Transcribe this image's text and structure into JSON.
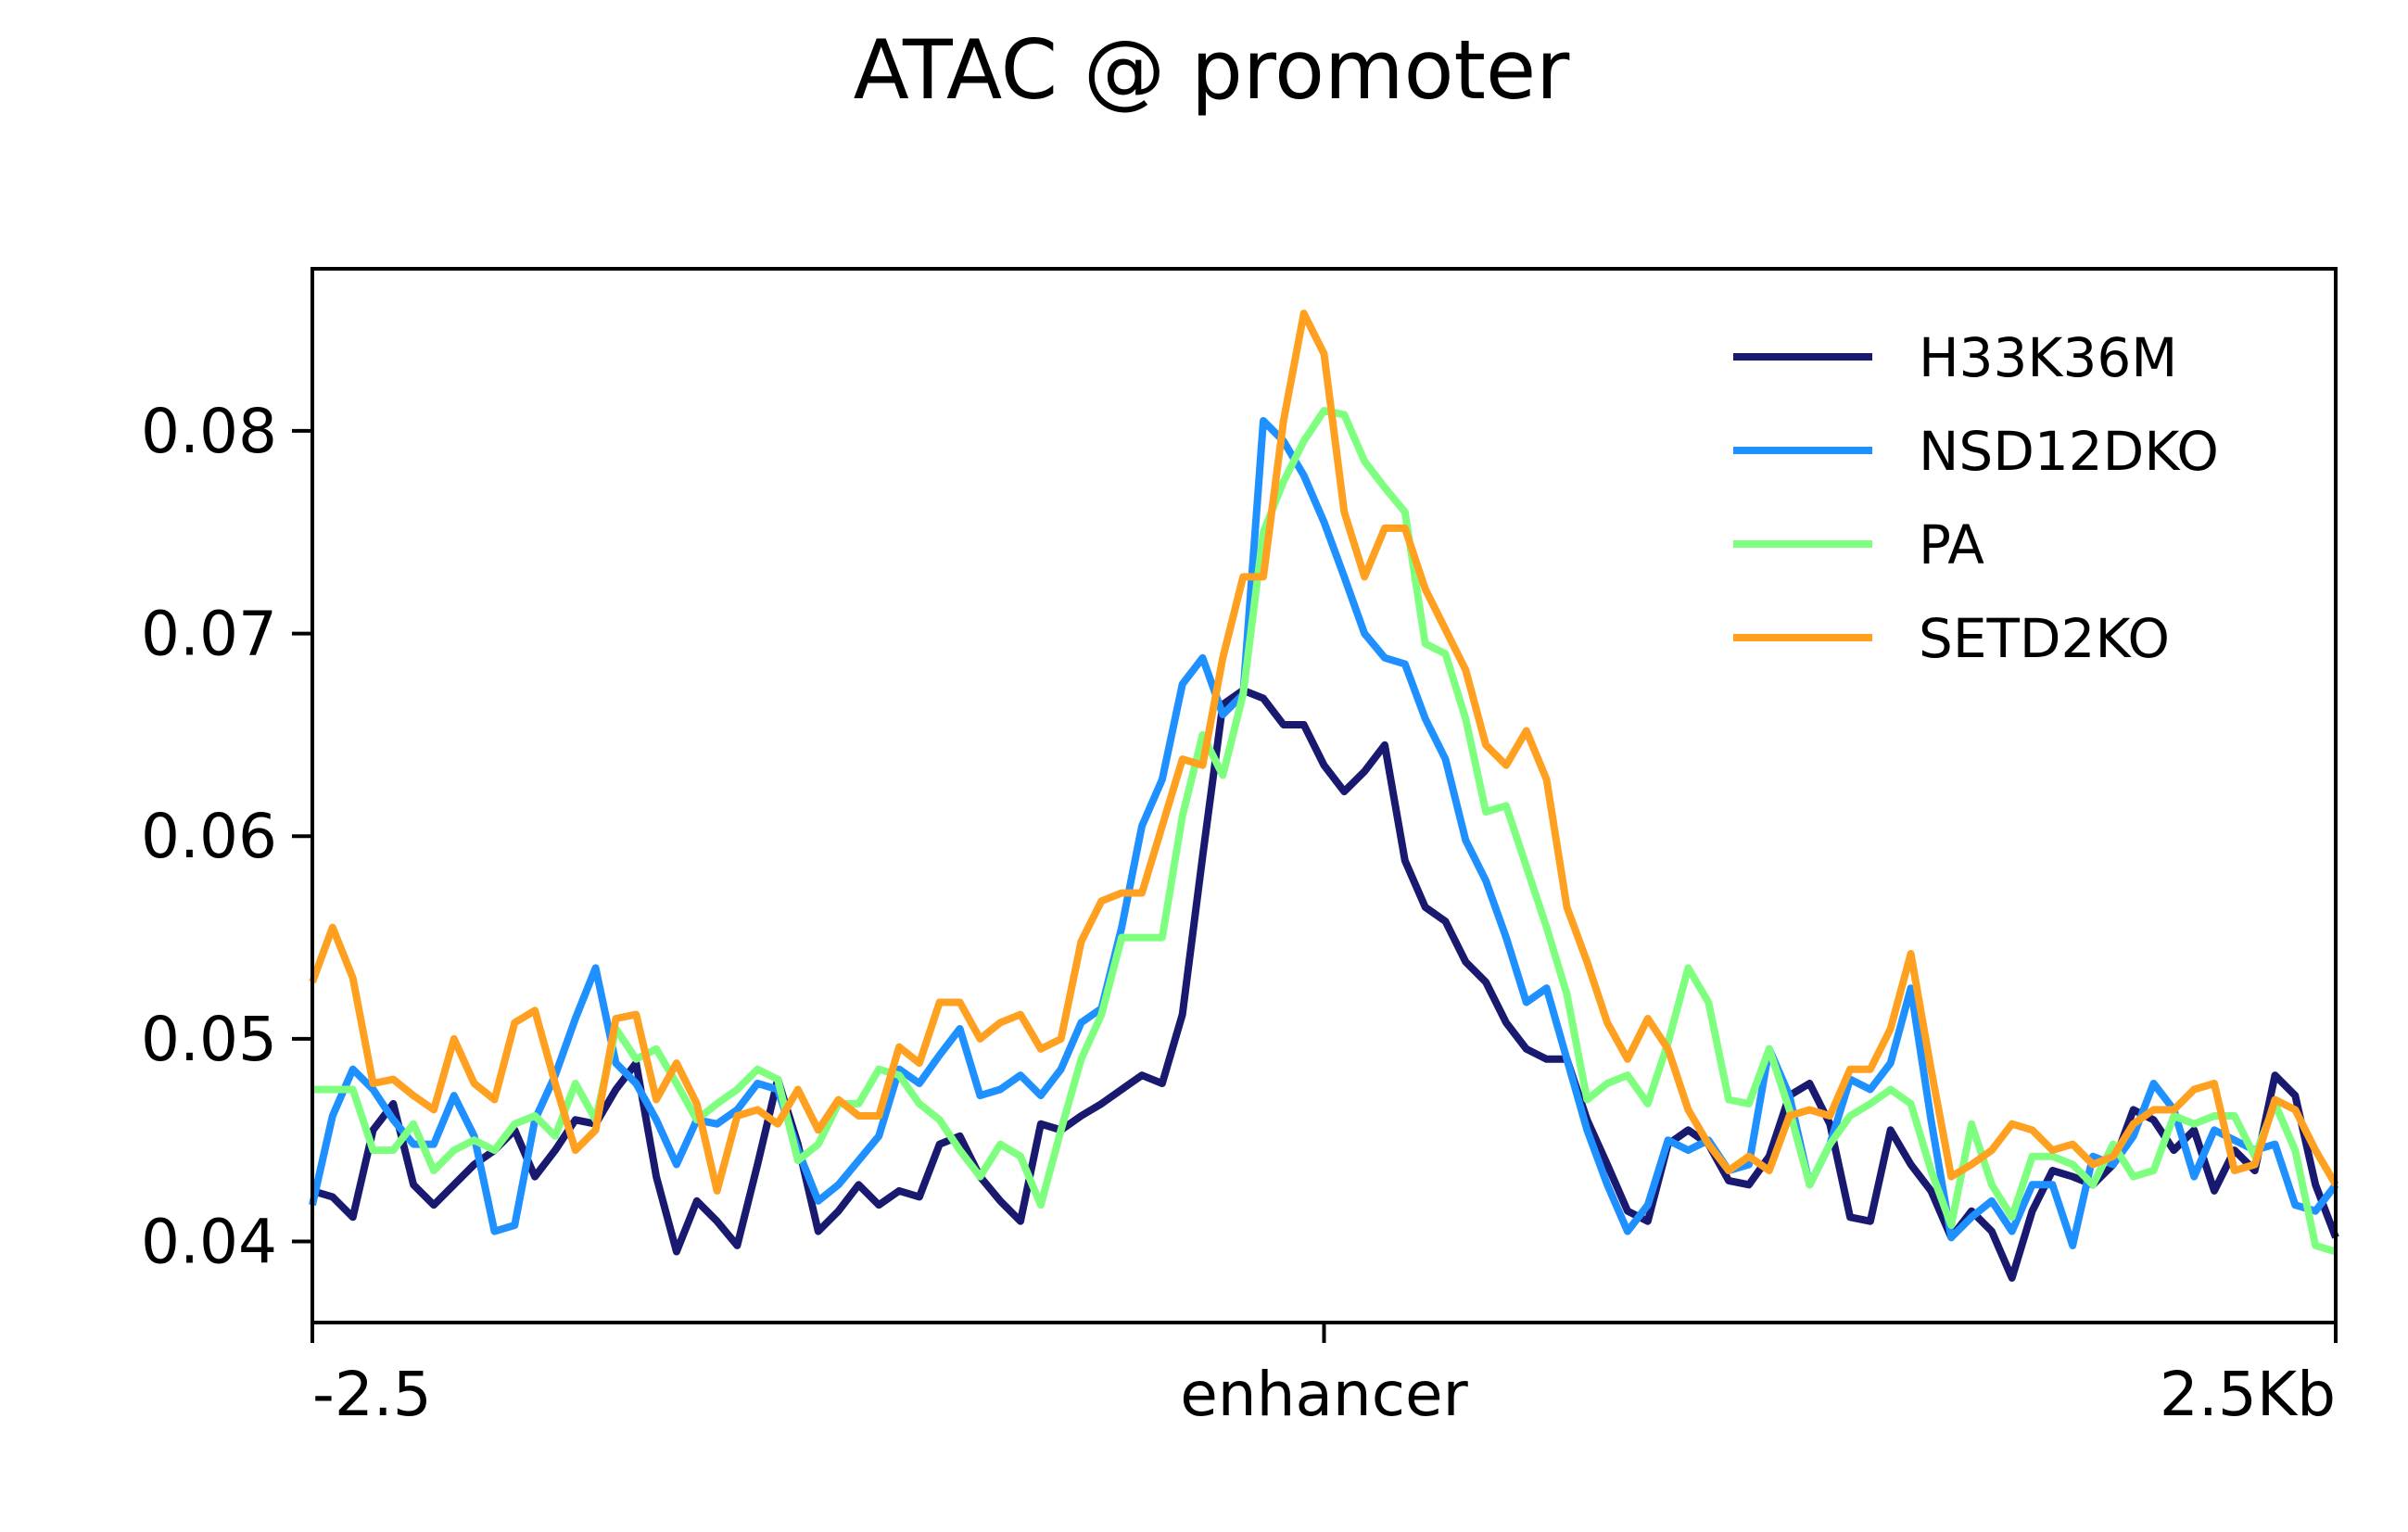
{
  "chart_data": {
    "type": "line",
    "title": "ATAC @ promoter",
    "xlabel": "",
    "ylabel": "",
    "xlim": [
      -2.5,
      2.5
    ],
    "ylim": [
      0.036,
      0.088
    ],
    "x_ticks": [
      {
        "value": -2.5,
        "label": "-2.5"
      },
      {
        "value": 0,
        "label": "enhancer"
      },
      {
        "value": 2.5,
        "label": "2.5Kb"
      }
    ],
    "y_ticks": [
      {
        "value": 0.04,
        "label": "0.04"
      },
      {
        "value": 0.05,
        "label": "0.05"
      },
      {
        "value": 0.06,
        "label": "0.06"
      },
      {
        "value": 0.07,
        "label": "0.07"
      },
      {
        "value": 0.08,
        "label": "0.08"
      }
    ],
    "grid": false,
    "legend_position": "top-right",
    "x": [
      -2.5,
      -2.45,
      -2.4,
      -2.35,
      -2.3,
      -2.25,
      -2.2,
      -2.15,
      -2.1,
      -2.05,
      -2.0,
      -1.95,
      -1.9,
      -1.85,
      -1.8,
      -1.75,
      -1.7,
      -1.65,
      -1.6,
      -1.55,
      -1.5,
      -1.45,
      -1.4,
      -1.35,
      -1.3,
      -1.25,
      -1.2,
      -1.15,
      -1.1,
      -1.05,
      -1.0,
      -0.95,
      -0.9,
      -0.85,
      -0.8,
      -0.75,
      -0.7,
      -0.65,
      -0.6,
      -0.55,
      -0.5,
      -0.45,
      -0.4,
      -0.35,
      -0.3,
      -0.25,
      -0.2,
      -0.15,
      -0.1,
      -0.05,
      0.0,
      0.05,
      0.1,
      0.15,
      0.2,
      0.25,
      0.3,
      0.35,
      0.4,
      0.45,
      0.5,
      0.55,
      0.6,
      0.65,
      0.7,
      0.75,
      0.8,
      0.85,
      0.9,
      0.95,
      1.0,
      1.05,
      1.1,
      1.15,
      1.2,
      1.25,
      1.3,
      1.35,
      1.4,
      1.45,
      1.5,
      1.55,
      1.6,
      1.65,
      1.7,
      1.75,
      1.8,
      1.85,
      1.9,
      1.95,
      2.0,
      2.05,
      2.1,
      2.15,
      2.2,
      2.25,
      2.3,
      2.35,
      2.4,
      2.45,
      2.5
    ],
    "series": [
      {
        "name": "H33K36M",
        "color": "#191970",
        "values": [
          0.0425,
          0.0422,
          0.0412,
          0.0455,
          0.0468,
          0.0428,
          0.0418,
          0.0428,
          0.0438,
          0.0445,
          0.0455,
          0.0432,
          0.0445,
          0.046,
          0.0458,
          0.0475,
          0.0488,
          0.0432,
          0.0395,
          0.042,
          0.041,
          0.0398,
          0.0438,
          0.048,
          0.0448,
          0.0405,
          0.0415,
          0.0428,
          0.0418,
          0.0425,
          0.0422,
          0.0448,
          0.0452,
          0.0432,
          0.042,
          0.041,
          0.0458,
          0.0455,
          0.0462,
          0.0468,
          0.0475,
          0.0482,
          0.0478,
          0.0512,
          0.059,
          0.0665,
          0.0672,
          0.0668,
          0.0655,
          0.0655,
          0.0635,
          0.0622,
          0.0632,
          0.0645,
          0.0588,
          0.0565,
          0.0558,
          0.0538,
          0.0528,
          0.0508,
          0.0495,
          0.049,
          0.049,
          0.046,
          0.0438,
          0.0415,
          0.041,
          0.0448,
          0.0455,
          0.0448,
          0.043,
          0.0428,
          0.0442,
          0.0472,
          0.0478,
          0.0458,
          0.0412,
          0.041,
          0.0455,
          0.0438,
          0.0425,
          0.0402,
          0.0415,
          0.0405,
          0.0382,
          0.0415,
          0.0435,
          0.0432,
          0.0428,
          0.0438,
          0.0465,
          0.046,
          0.0445,
          0.0455,
          0.0425,
          0.0445,
          0.0435,
          0.0482,
          0.0472,
          0.0428,
          0.0402
        ]
      },
      {
        "name": "NSD12DKO",
        "color": "#1e90ff",
        "values": [
          0.0418,
          0.0462,
          0.0485,
          0.0475,
          0.046,
          0.0448,
          0.0448,
          0.0472,
          0.0452,
          0.0405,
          0.0408,
          0.046,
          0.0482,
          0.051,
          0.0535,
          0.0488,
          0.0478,
          0.046,
          0.0438,
          0.046,
          0.0458,
          0.0465,
          0.0478,
          0.0475,
          0.0445,
          0.042,
          0.0428,
          0.044,
          0.0452,
          0.0485,
          0.0478,
          0.0492,
          0.0505,
          0.0472,
          0.0475,
          0.0482,
          0.0472,
          0.0485,
          0.0508,
          0.0515,
          0.0555,
          0.0605,
          0.0628,
          0.0675,
          0.0688,
          0.066,
          0.067,
          0.0805,
          0.0795,
          0.0778,
          0.0755,
          0.0728,
          0.07,
          0.0688,
          0.0685,
          0.0658,
          0.0638,
          0.0598,
          0.0578,
          0.055,
          0.0518,
          0.0525,
          0.049,
          0.0455,
          0.0428,
          0.0405,
          0.0418,
          0.045,
          0.0445,
          0.045,
          0.0435,
          0.0438,
          0.0495,
          0.0472,
          0.0428,
          0.0448,
          0.048,
          0.0475,
          0.0488,
          0.0525,
          0.046,
          0.0402,
          0.0412,
          0.042,
          0.0405,
          0.0428,
          0.0428,
          0.0398,
          0.0442,
          0.0438,
          0.0452,
          0.0478,
          0.0465,
          0.0432,
          0.0455,
          0.045,
          0.0445,
          0.0448,
          0.0418,
          0.0415,
          0.0428
        ]
      },
      {
        "name": "PA",
        "color": "#7fff7f",
        "values": [
          0.0475,
          0.0475,
          0.0475,
          0.0445,
          0.0445,
          0.0458,
          0.0435,
          0.0445,
          0.045,
          0.0445,
          0.0458,
          0.0462,
          0.0452,
          0.0478,
          0.046,
          0.0505,
          0.049,
          0.0495,
          0.0478,
          0.046,
          0.0468,
          0.0475,
          0.0485,
          0.048,
          0.044,
          0.0448,
          0.0468,
          0.0468,
          0.0485,
          0.0482,
          0.0468,
          0.046,
          0.0445,
          0.0432,
          0.0448,
          0.0442,
          0.0418,
          0.0455,
          0.049,
          0.0512,
          0.055,
          0.055,
          0.055,
          0.061,
          0.065,
          0.063,
          0.067,
          0.075,
          0.0775,
          0.0795,
          0.081,
          0.0808,
          0.0785,
          0.0772,
          0.076,
          0.0695,
          0.069,
          0.0658,
          0.0612,
          0.0615,
          0.0585,
          0.0555,
          0.0522,
          0.047,
          0.0478,
          0.0482,
          0.0468,
          0.0498,
          0.0535,
          0.0518,
          0.047,
          0.0468,
          0.0495,
          0.0465,
          0.0428,
          0.0448,
          0.0462,
          0.0468,
          0.0475,
          0.0468,
          0.0435,
          0.0408,
          0.0458,
          0.0428,
          0.0412,
          0.0442,
          0.0442,
          0.0438,
          0.0428,
          0.0448,
          0.0432,
          0.0435,
          0.0462,
          0.0458,
          0.0462,
          0.0462,
          0.0442,
          0.0468,
          0.0445,
          0.0398,
          0.0395
        ]
      },
      {
        "name": "SETD2KO",
        "color": "#ffa020",
        "values": [
          0.0528,
          0.0555,
          0.053,
          0.0478,
          0.048,
          0.0472,
          0.0465,
          0.05,
          0.0478,
          0.047,
          0.0508,
          0.0514,
          0.0478,
          0.0445,
          0.0455,
          0.051,
          0.0512,
          0.047,
          0.0488,
          0.0468,
          0.0425,
          0.0462,
          0.0465,
          0.0458,
          0.0475,
          0.0455,
          0.047,
          0.0462,
          0.0462,
          0.0496,
          0.0488,
          0.0518,
          0.0518,
          0.05,
          0.0508,
          0.0512,
          0.0495,
          0.05,
          0.0548,
          0.0568,
          0.0572,
          0.0572,
          0.0605,
          0.0638,
          0.0635,
          0.0688,
          0.0728,
          0.0728,
          0.0805,
          0.0858,
          0.0838,
          0.076,
          0.0728,
          0.0752,
          0.0752,
          0.0722,
          0.0702,
          0.0682,
          0.0645,
          0.0635,
          0.0652,
          0.0628,
          0.0565,
          0.0538,
          0.0508,
          0.049,
          0.051,
          0.0495,
          0.0465,
          0.0448,
          0.0435,
          0.0442,
          0.0435,
          0.0462,
          0.0465,
          0.0462,
          0.0485,
          0.0485,
          0.0505,
          0.0542,
          0.0485,
          0.0432,
          0.0438,
          0.0445,
          0.0458,
          0.0455,
          0.0445,
          0.0448,
          0.0438,
          0.0442,
          0.0458,
          0.0465,
          0.0465,
          0.0475,
          0.0478,
          0.0435,
          0.0438,
          0.047,
          0.0465,
          0.0445,
          0.0428
        ]
      }
    ]
  }
}
